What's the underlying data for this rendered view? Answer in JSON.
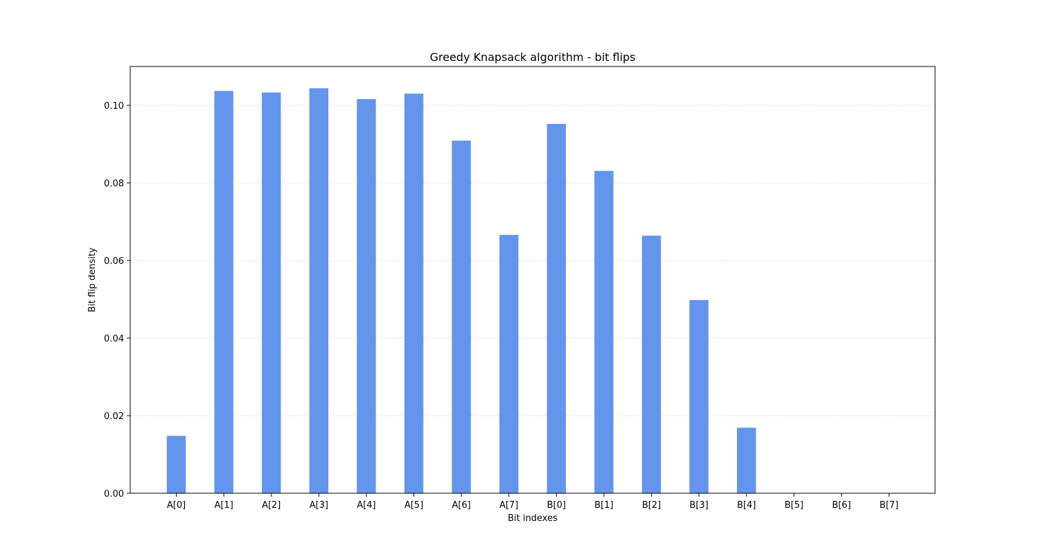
{
  "chart_data": {
    "type": "bar",
    "title": "Greedy Knapsack algorithm - bit flips",
    "xlabel": "Bit indexes",
    "ylabel": "Bit flip density",
    "categories": [
      "A[0]",
      "A[1]",
      "A[2]",
      "A[3]",
      "A[4]",
      "A[5]",
      "A[6]",
      "A[7]",
      "B[0]",
      "B[1]",
      "B[2]",
      "B[3]",
      "B[4]",
      "B[5]",
      "B[6]",
      "B[7]"
    ],
    "values": [
      0.0148,
      0.1037,
      0.1033,
      0.1044,
      0.1016,
      0.103,
      0.0909,
      0.0666,
      0.0952,
      0.0831,
      0.0664,
      0.0498,
      0.0169,
      0,
      0,
      0
    ],
    "ylim": [
      0,
      0.11
    ],
    "yticks": [
      "0.00",
      "0.02",
      "0.04",
      "0.06",
      "0.08",
      "0.10"
    ],
    "ytick_values": [
      0,
      0.02,
      0.04,
      0.06,
      0.08,
      0.1
    ],
    "grid": "horizontal dotted",
    "bar_color": "#6495ED"
  }
}
